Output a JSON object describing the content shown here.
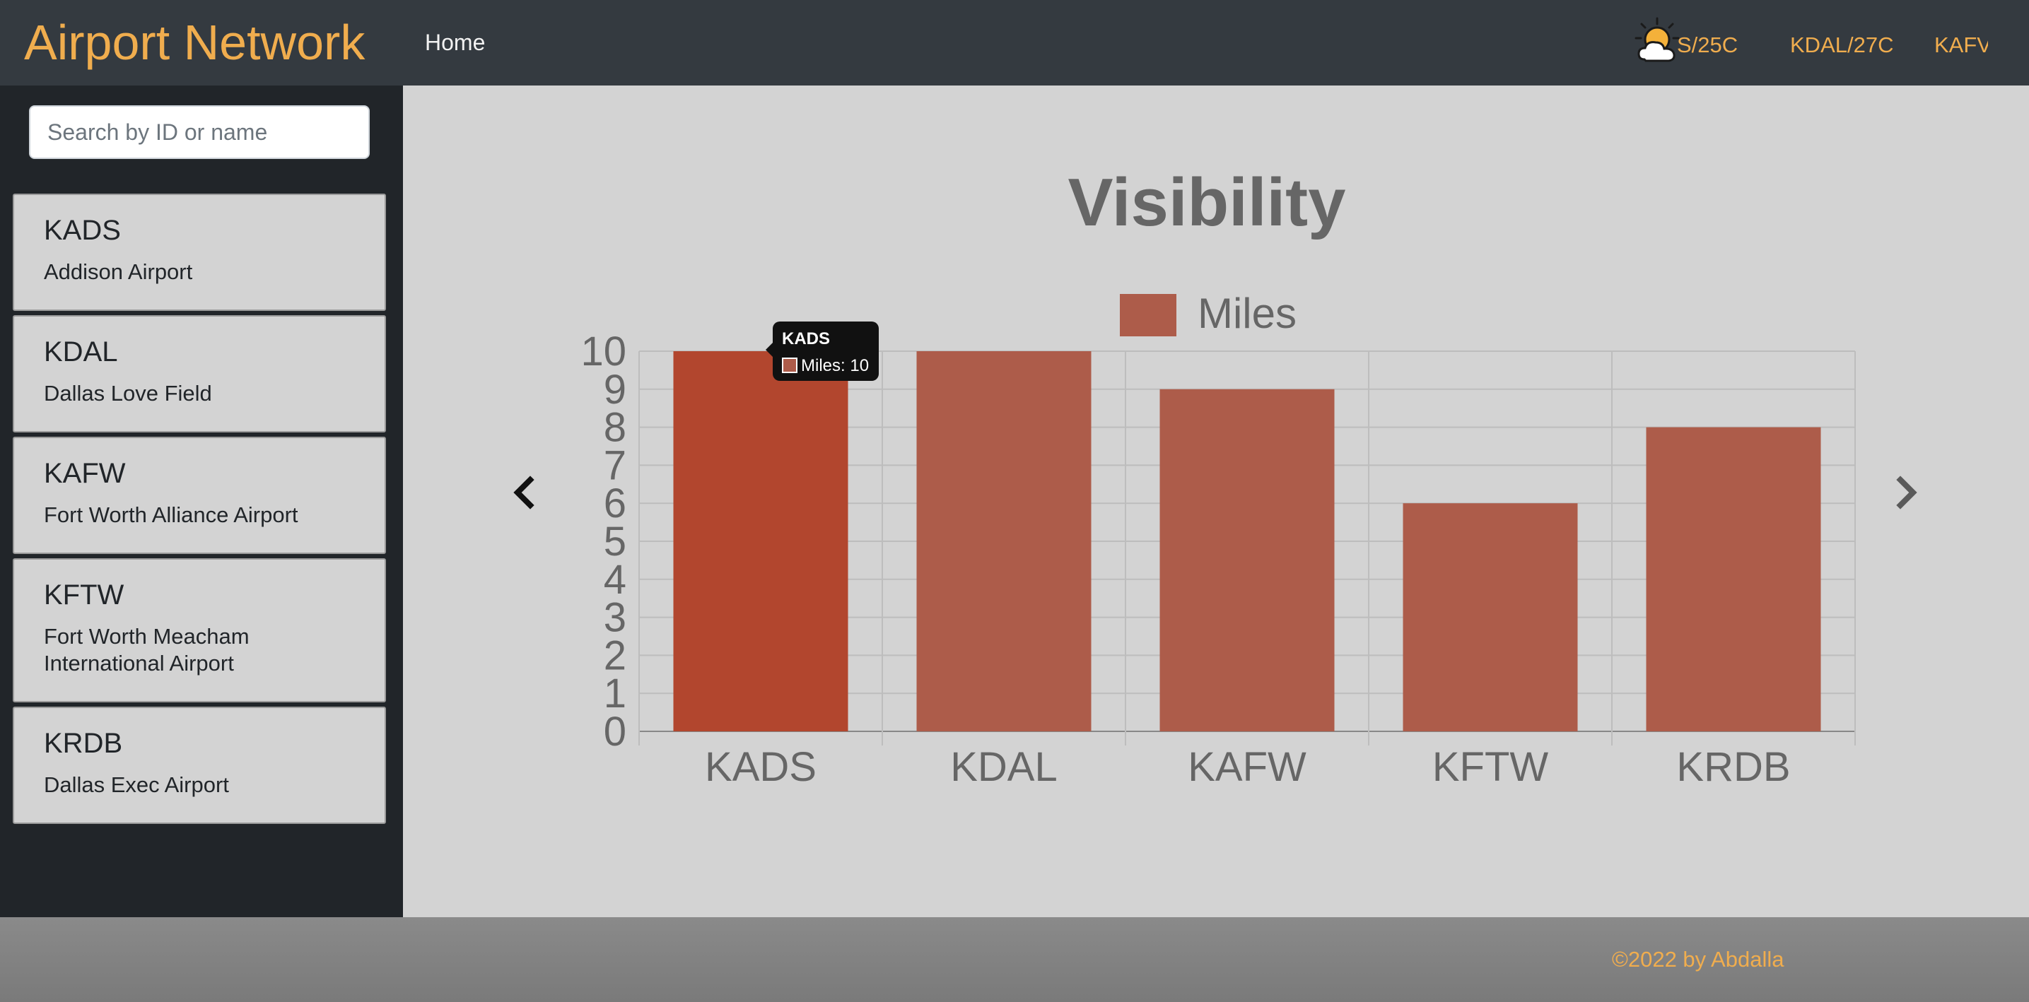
{
  "header": {
    "brand": "Airport Network",
    "nav_home": "Home",
    "weather_icon": "partly-cloudy-sun-icon",
    "ticker": [
      "S/25C",
      "KDAL/27C",
      "KAFV"
    ]
  },
  "sidebar": {
    "search_placeholder": "Search by ID or name",
    "airports": [
      {
        "code": "KADS",
        "name": "Addison Airport"
      },
      {
        "code": "KDAL",
        "name": "Dallas Love Field"
      },
      {
        "code": "KAFW",
        "name": "Fort Worth Alliance Airport"
      },
      {
        "code": "KFTW",
        "name": "Fort Worth Meacham International Airport"
      },
      {
        "code": "KRDB",
        "name": "Dallas Exec Airport"
      }
    ]
  },
  "carousel": {
    "prev_icon": "chevron-left-icon",
    "next_icon": "chevron-right-icon"
  },
  "chart_data": {
    "type": "bar",
    "title": "Visibility",
    "categories": [
      "KADS",
      "KDAL",
      "KAFW",
      "KFTW",
      "KRDB"
    ],
    "series": [
      {
        "name": "Miles",
        "values": [
          10,
          10,
          9,
          6,
          8
        ]
      }
    ],
    "ylim": [
      0,
      10
    ],
    "yticks": [
      "0",
      "1",
      "2",
      "3",
      "4",
      "5",
      "6",
      "7",
      "8",
      "9",
      "10"
    ],
    "grid": true,
    "legend": "top",
    "bar_color": "#ad5c4a",
    "highlight_color": "#b2462e",
    "tooltip": {
      "title": "KADS",
      "label": "Miles: 10",
      "category_index": 0
    }
  },
  "footer": {
    "text": "©2022 by Abdalla"
  }
}
